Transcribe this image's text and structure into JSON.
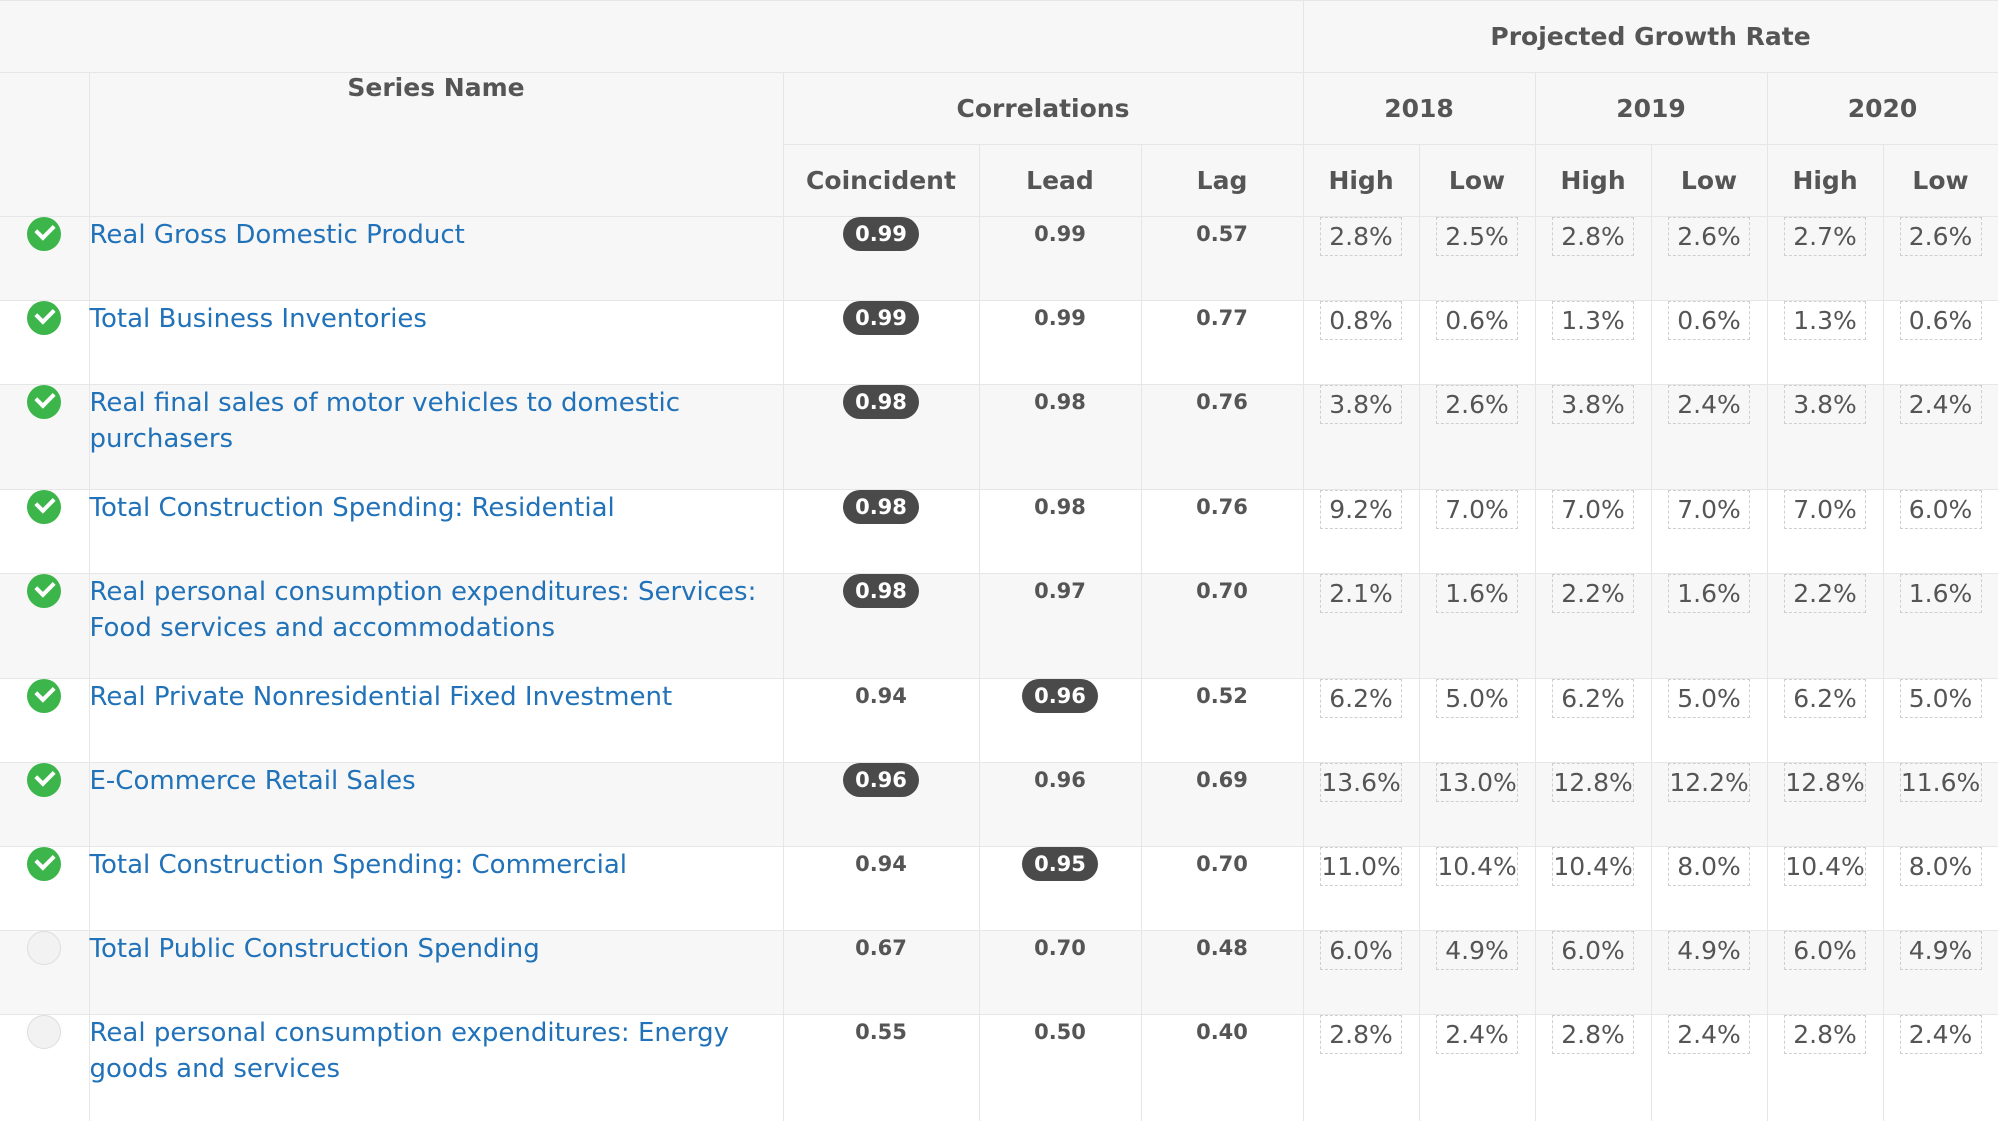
{
  "headers": {
    "projected_growth_rate": "Projected Growth Rate",
    "series_name": "Series Name",
    "correlations": "Correlations",
    "years": [
      "2018",
      "2019",
      "2020"
    ],
    "coincident": "Coincident",
    "lead": "Lead",
    "lag": "Lag",
    "high": "High",
    "low": "Low"
  },
  "colors": {
    "link": "#2172b8",
    "check_on": "#3cb54a",
    "pill": "#4a4a4a"
  },
  "rows": [
    {
      "checked": true,
      "name": "Real Gross Domestic Product",
      "coincident": "0.99",
      "lead": "0.99",
      "lag": "0.57",
      "highlight": "coincident",
      "rates": [
        "2.8%",
        "2.5%",
        "2.8%",
        "2.6%",
        "2.7%",
        "2.6%"
      ]
    },
    {
      "checked": true,
      "name": "Total Business Inventories",
      "coincident": "0.99",
      "lead": "0.99",
      "lag": "0.77",
      "highlight": "coincident",
      "rates": [
        "0.8%",
        "0.6%",
        "1.3%",
        "0.6%",
        "1.3%",
        "0.6%"
      ]
    },
    {
      "checked": true,
      "name": "Real final sales of motor vehicles to domestic purchasers",
      "coincident": "0.98",
      "lead": "0.98",
      "lag": "0.76",
      "highlight": "coincident",
      "rates": [
        "3.8%",
        "2.6%",
        "3.8%",
        "2.4%",
        "3.8%",
        "2.4%"
      ]
    },
    {
      "checked": true,
      "name": "Total Construction Spending: Residential",
      "coincident": "0.98",
      "lead": "0.98",
      "lag": "0.76",
      "highlight": "coincident",
      "rates": [
        "9.2%",
        "7.0%",
        "7.0%",
        "7.0%",
        "7.0%",
        "6.0%"
      ]
    },
    {
      "checked": true,
      "name": "Real personal consumption expenditures: Services: Food services and accommodations",
      "coincident": "0.98",
      "lead": "0.97",
      "lag": "0.70",
      "highlight": "coincident",
      "rates": [
        "2.1%",
        "1.6%",
        "2.2%",
        "1.6%",
        "2.2%",
        "1.6%"
      ]
    },
    {
      "checked": true,
      "name": "Real Private Nonresidential Fixed Investment",
      "coincident": "0.94",
      "lead": "0.96",
      "lag": "0.52",
      "highlight": "lead",
      "rates": [
        "6.2%",
        "5.0%",
        "6.2%",
        "5.0%",
        "6.2%",
        "5.0%"
      ]
    },
    {
      "checked": true,
      "name": "E-Commerce Retail Sales",
      "coincident": "0.96",
      "lead": "0.96",
      "lag": "0.69",
      "highlight": "coincident",
      "rates": [
        "13.6%",
        "13.0%",
        "12.8%",
        "12.2%",
        "12.8%",
        "11.6%"
      ]
    },
    {
      "checked": true,
      "name": "Total Construction Spending: Commercial",
      "coincident": "0.94",
      "lead": "0.95",
      "lag": "0.70",
      "highlight": "lead",
      "rates": [
        "11.0%",
        "10.4%",
        "10.4%",
        "8.0%",
        "10.4%",
        "8.0%"
      ]
    },
    {
      "checked": false,
      "name": "Total Public Construction Spending",
      "coincident": "0.67",
      "lead": "0.70",
      "lag": "0.48",
      "highlight": "",
      "rates": [
        "6.0%",
        "4.9%",
        "6.0%",
        "4.9%",
        "6.0%",
        "4.9%"
      ]
    },
    {
      "checked": false,
      "name": "Real personal consumption expenditures: Energy goods and services",
      "coincident": "0.55",
      "lead": "0.50",
      "lag": "0.40",
      "highlight": "",
      "rates": [
        "2.8%",
        "2.4%",
        "2.8%",
        "2.4%",
        "2.8%",
        "2.4%"
      ]
    }
  ]
}
